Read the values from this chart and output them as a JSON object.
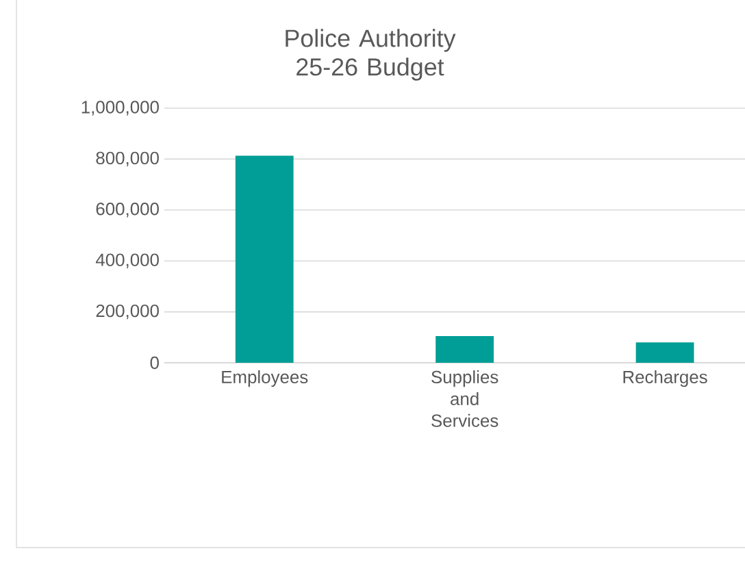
{
  "chart_data": {
    "type": "bar",
    "title": "Police Authority 25-26 Budget",
    "categories": [
      "Employees",
      "Supplies and Services",
      "Recharges"
    ],
    "values": [
      813000,
      105000,
      80000
    ],
    "color": "#009e96",
    "ylim": [
      0,
      1000000
    ],
    "yticks": [
      {
        "value": 0,
        "label": "0"
      },
      {
        "value": 200000,
        "label": "200,000"
      },
      {
        "value": 400000,
        "label": "400,000"
      },
      {
        "value": 600000,
        "label": "600,000"
      },
      {
        "value": 800000,
        "label": "800,000"
      },
      {
        "value": 1000000,
        "label": "1,000,000"
      }
    ],
    "grid": "y"
  }
}
